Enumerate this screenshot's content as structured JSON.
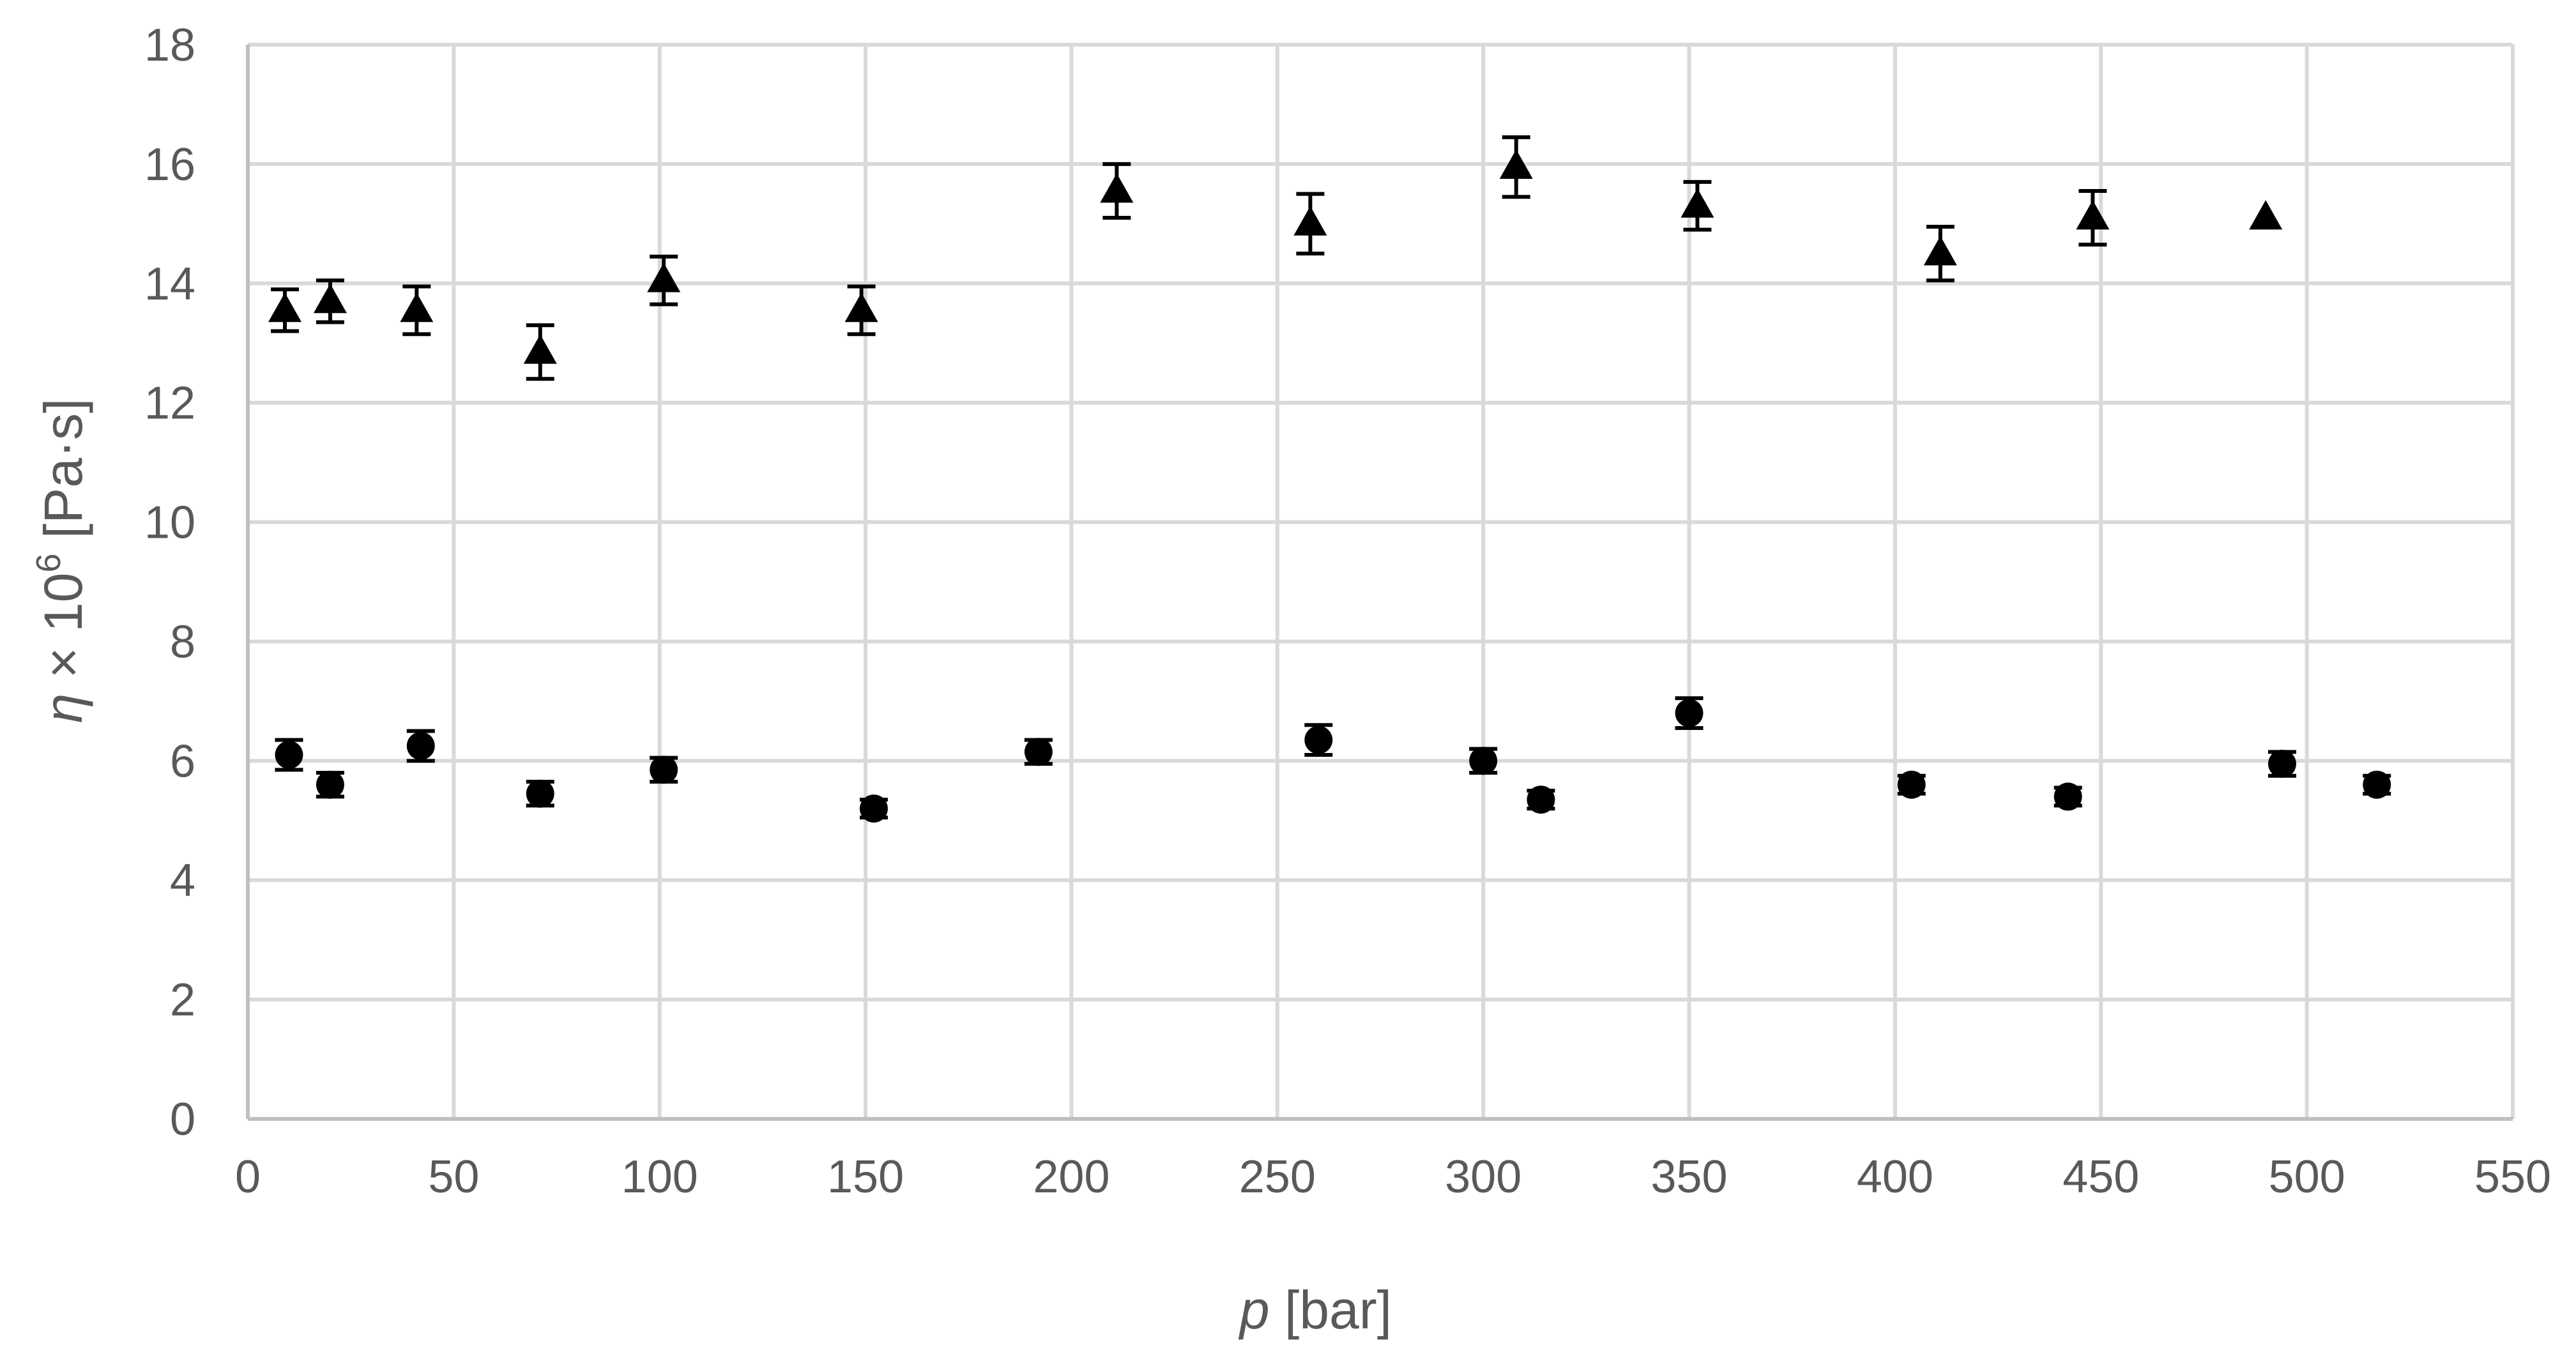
{
  "chart_data": {
    "type": "scatter",
    "title": "",
    "xlabel_var": "p",
    "xlabel_unit": " [bar]",
    "ylabel_var": "η",
    "ylabel_mid": " × 10",
    "ylabel_exp": "6",
    "ylabel_unit": " [Pa·s]",
    "xlim": [
      0,
      550
    ],
    "ylim": [
      0,
      18
    ],
    "x_ticks": [
      0,
      50,
      100,
      150,
      200,
      250,
      300,
      350,
      400,
      450,
      500,
      550
    ],
    "y_ticks": [
      0,
      2,
      4,
      6,
      8,
      10,
      12,
      14,
      16,
      18
    ],
    "grid": true,
    "legend": "none",
    "series": [
      {
        "marker": "triangle",
        "color": "#000000",
        "points": [
          {
            "x": 9,
            "y": 13.55,
            "err": 0.35
          },
          {
            "x": 20,
            "y": 13.7,
            "err": 0.35
          },
          {
            "x": 41,
            "y": 13.55,
            "err": 0.4
          },
          {
            "x": 71,
            "y": 12.85,
            "err": 0.45
          },
          {
            "x": 101,
            "y": 14.05,
            "err": 0.4
          },
          {
            "x": 149,
            "y": 13.55,
            "err": 0.4
          },
          {
            "x": 211,
            "y": 15.55,
            "err": 0.45
          },
          {
            "x": 258,
            "y": 15.0,
            "err": 0.5
          },
          {
            "x": 308,
            "y": 15.95,
            "err": 0.5
          },
          {
            "x": 352,
            "y": 15.3,
            "err": 0.4
          },
          {
            "x": 411,
            "y": 14.5,
            "err": 0.45
          },
          {
            "x": 448,
            "y": 15.1,
            "err": 0.45
          },
          {
            "x": 490,
            "y": 15.1,
            "err": 0
          }
        ]
      },
      {
        "marker": "circle",
        "color": "#000000",
        "points": [
          {
            "x": 10,
            "y": 6.1,
            "err": 0.25
          },
          {
            "x": 20,
            "y": 5.6,
            "err": 0.2
          },
          {
            "x": 42,
            "y": 6.25,
            "err": 0.25
          },
          {
            "x": 71,
            "y": 5.45,
            "err": 0.2
          },
          {
            "x": 101,
            "y": 5.85,
            "err": 0.2
          },
          {
            "x": 152,
            "y": 5.2,
            "err": 0.15
          },
          {
            "x": 192,
            "y": 6.15,
            "err": 0.2
          },
          {
            "x": 260,
            "y": 6.35,
            "err": 0.25
          },
          {
            "x": 300,
            "y": 6.0,
            "err": 0.2
          },
          {
            "x": 314,
            "y": 5.35,
            "err": 0.15
          },
          {
            "x": 350,
            "y": 6.8,
            "err": 0.25
          },
          {
            "x": 404,
            "y": 5.6,
            "err": 0.15
          },
          {
            "x": 442,
            "y": 5.4,
            "err": 0.15
          },
          {
            "x": 494,
            "y": 5.95,
            "err": 0.2
          },
          {
            "x": 517,
            "y": 5.6,
            "err": 0.15
          }
        ]
      }
    ]
  }
}
